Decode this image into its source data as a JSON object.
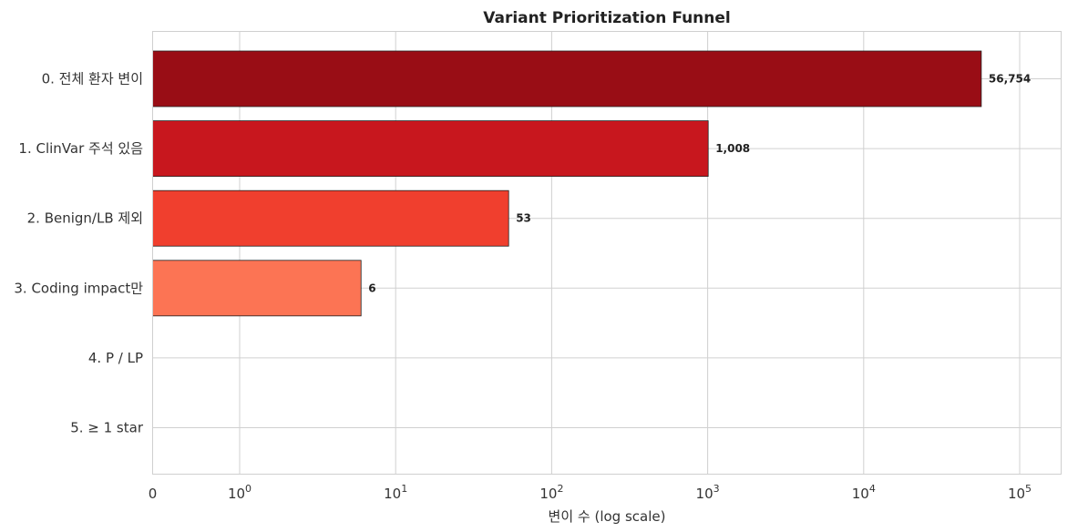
{
  "chart_data": {
    "type": "bar",
    "orientation": "horizontal",
    "title": "Variant Prioritization Funnel",
    "xlabel": "변이 수 (log scale)",
    "ylabel": "",
    "x_scale": "symlog",
    "x_ticks": [
      {
        "value": 0,
        "label": "0"
      },
      {
        "value": 1,
        "label": "10",
        "exp": "0"
      },
      {
        "value": 10,
        "label": "10",
        "exp": "1"
      },
      {
        "value": 100,
        "label": "10",
        "exp": "2"
      },
      {
        "value": 1000,
        "label": "10",
        "exp": "3"
      },
      {
        "value": 10000,
        "label": "10",
        "exp": "4"
      },
      {
        "value": 100000,
        "label": "10",
        "exp": "5"
      }
    ],
    "xlim": [
      0,
      110000
    ],
    "grid": true,
    "categories": [
      "0. 전체 환자 변이",
      "1. ClinVar 주석 있음",
      "2. Benign/LB 제외",
      "3. Coding impact만",
      "4. P / LP",
      "5. ≥ 1 star"
    ],
    "values": [
      56754,
      1008,
      53,
      6,
      0,
      0
    ],
    "data_labels": [
      "56,754",
      "1,008",
      "53",
      "6",
      "",
      ""
    ],
    "colors": [
      "#990d15",
      "#c8171e",
      "#f03f2e",
      "#fc7454",
      "#fca98c",
      "#fde0d4"
    ]
  }
}
